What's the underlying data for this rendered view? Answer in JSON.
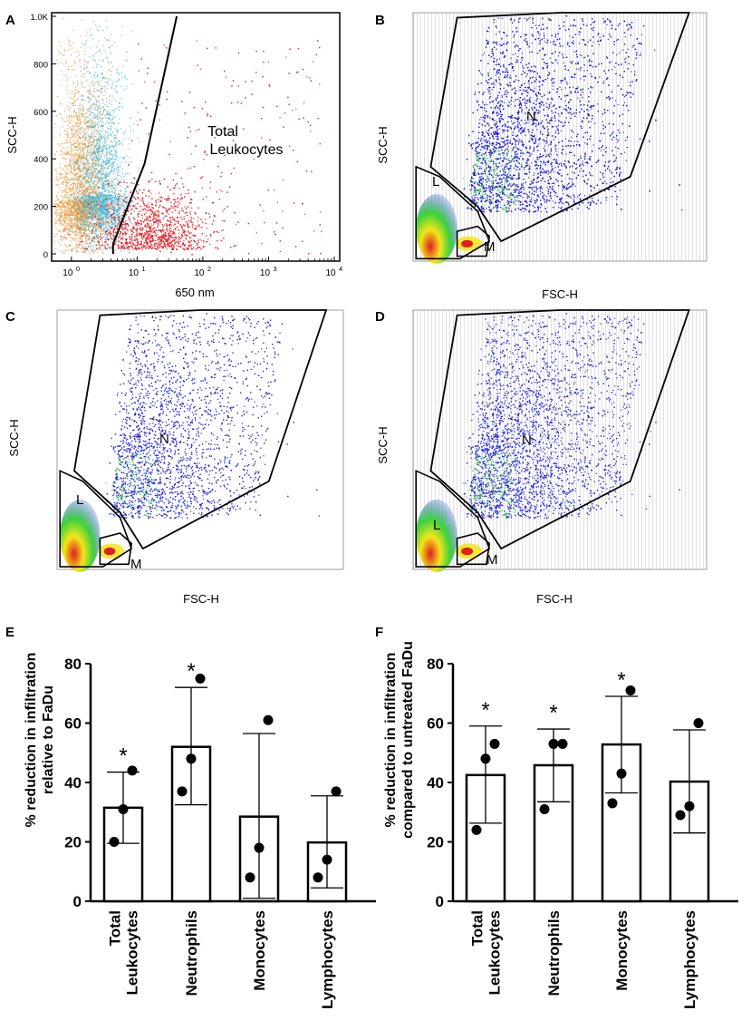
{
  "figure": {
    "panel_letters": [
      "A",
      "B",
      "C",
      "D",
      "E",
      "F"
    ],
    "gate_labels": {
      "N": "N",
      "L": "L",
      "M": "M"
    },
    "colors": {
      "gate_line": "#000000",
      "dot_blue": "#1f1fd6",
      "dot_red": "#e0232a",
      "dot_orange": "#f08c1e",
      "dot_cyan": "#3cb8e0",
      "heat_green": "#3cd23c",
      "heat_yellow": "#f2e61a",
      "heat_red": "#e01e1e",
      "bar_fill": "#ffffff",
      "bar_stroke": "#000000",
      "point": "#000000"
    }
  },
  "chart_data": [
    {
      "panel": "A",
      "type": "scatter",
      "xlabel": "650 nm",
      "ylabel": "SCC-H",
      "xscale": "log",
      "xlim": [
        0.5,
        10000
      ],
      "ylim": [
        0,
        1000
      ],
      "x_ticks": [
        {
          "value": 1,
          "base": "10",
          "exp": "0"
        },
        {
          "value": 10,
          "base": "10",
          "exp": "1"
        },
        {
          "value": 100,
          "base": "10",
          "exp": "2"
        },
        {
          "value": 1000,
          "base": "10",
          "exp": "3"
        },
        {
          "value": 10000,
          "base": "10",
          "exp": "4"
        }
      ],
      "y_ticks": [
        {
          "value": 0,
          "label": "0"
        },
        {
          "value": 200,
          "label": "200"
        },
        {
          "value": 400,
          "label": "400"
        },
        {
          "value": 600,
          "label": "600"
        },
        {
          "value": 800,
          "label": "800"
        },
        {
          "value": 1000,
          "label": "1.0K"
        }
      ],
      "gate_label": "Total\nLeukocytes",
      "gate_label_lines": [
        "Total",
        "Leukocytes"
      ],
      "gate": [
        [
          4.3,
          0
        ],
        [
          4.3,
          40
        ],
        [
          13,
          380
        ],
        [
          40,
          1000
        ]
      ],
      "populations": [
        {
          "name": "orange",
          "color": "#f08c1e",
          "center_log_x": 0.15,
          "center_y": 230
        },
        {
          "name": "cyan",
          "color": "#3cb8e0",
          "center_log_x": 0.45,
          "center_y": 250
        },
        {
          "name": "red",
          "color": "#e0232a",
          "center_log_x": 1.2,
          "center_y": 120
        }
      ]
    },
    {
      "panel": "B",
      "type": "scatter",
      "xlabel": "FSC-H",
      "ylabel": "SCC-H",
      "gates": [
        "N",
        "L",
        "M"
      ]
    },
    {
      "panel": "C",
      "type": "scatter",
      "xlabel": "FSC-H",
      "ylabel": "SCC-H",
      "gates": [
        "N",
        "L",
        "M"
      ]
    },
    {
      "panel": "D",
      "type": "scatter",
      "xlabel": "FSC-H",
      "ylabel": "SCC-H",
      "gates": [
        "N",
        "L",
        "M"
      ]
    },
    {
      "panel": "E",
      "type": "bar",
      "ylabel_lines": [
        "% reduction in infiltration",
        "relative to FaDu"
      ],
      "ylim": [
        0,
        80
      ],
      "y_ticks": [
        0,
        20,
        40,
        60,
        80
      ],
      "categories": [
        {
          "lines": [
            "Total",
            "Leukocytes"
          ]
        },
        {
          "lines": [
            "Neutrophils"
          ]
        },
        {
          "lines": [
            "Monocytes"
          ]
        },
        {
          "lines": [
            "Lymphocytes"
          ]
        }
      ],
      "means": [
        31.5,
        52,
        28.5,
        19.8
      ],
      "sd_low": [
        19.5,
        32.5,
        1,
        4.5
      ],
      "sd_high": [
        43.5,
        72,
        56.5,
        35.5
      ],
      "points": [
        [
          20,
          31,
          44
        ],
        [
          37,
          48,
          75
        ],
        [
          8,
          18,
          61
        ],
        [
          8,
          14,
          37
        ]
      ],
      "significance": [
        "*",
        "*",
        "",
        ""
      ]
    },
    {
      "panel": "F",
      "type": "bar",
      "ylabel_lines": [
        "% reduction in infiltration",
        "compared to untreated FaDu"
      ],
      "ylim": [
        0,
        80
      ],
      "y_ticks": [
        0,
        20,
        40,
        60,
        80
      ],
      "categories": [
        {
          "lines": [
            "Total",
            "Leukocytes"
          ]
        },
        {
          "lines": [
            "Neutrophils"
          ]
        },
        {
          "lines": [
            "Monocytes"
          ]
        },
        {
          "lines": [
            "Lymphocytes"
          ]
        }
      ],
      "means": [
        42.5,
        45.8,
        52.8,
        40.3
      ],
      "sd_low": [
        26.3,
        33.5,
        36.5,
        23
      ],
      "sd_high": [
        59,
        58,
        69,
        57.7
      ],
      "points": [
        [
          24,
          48,
          53
        ],
        [
          31,
          53,
          53
        ],
        [
          33,
          43,
          71
        ],
        [
          29,
          32,
          60
        ]
      ],
      "significance": [
        "*",
        "*",
        "*",
        ""
      ]
    }
  ]
}
